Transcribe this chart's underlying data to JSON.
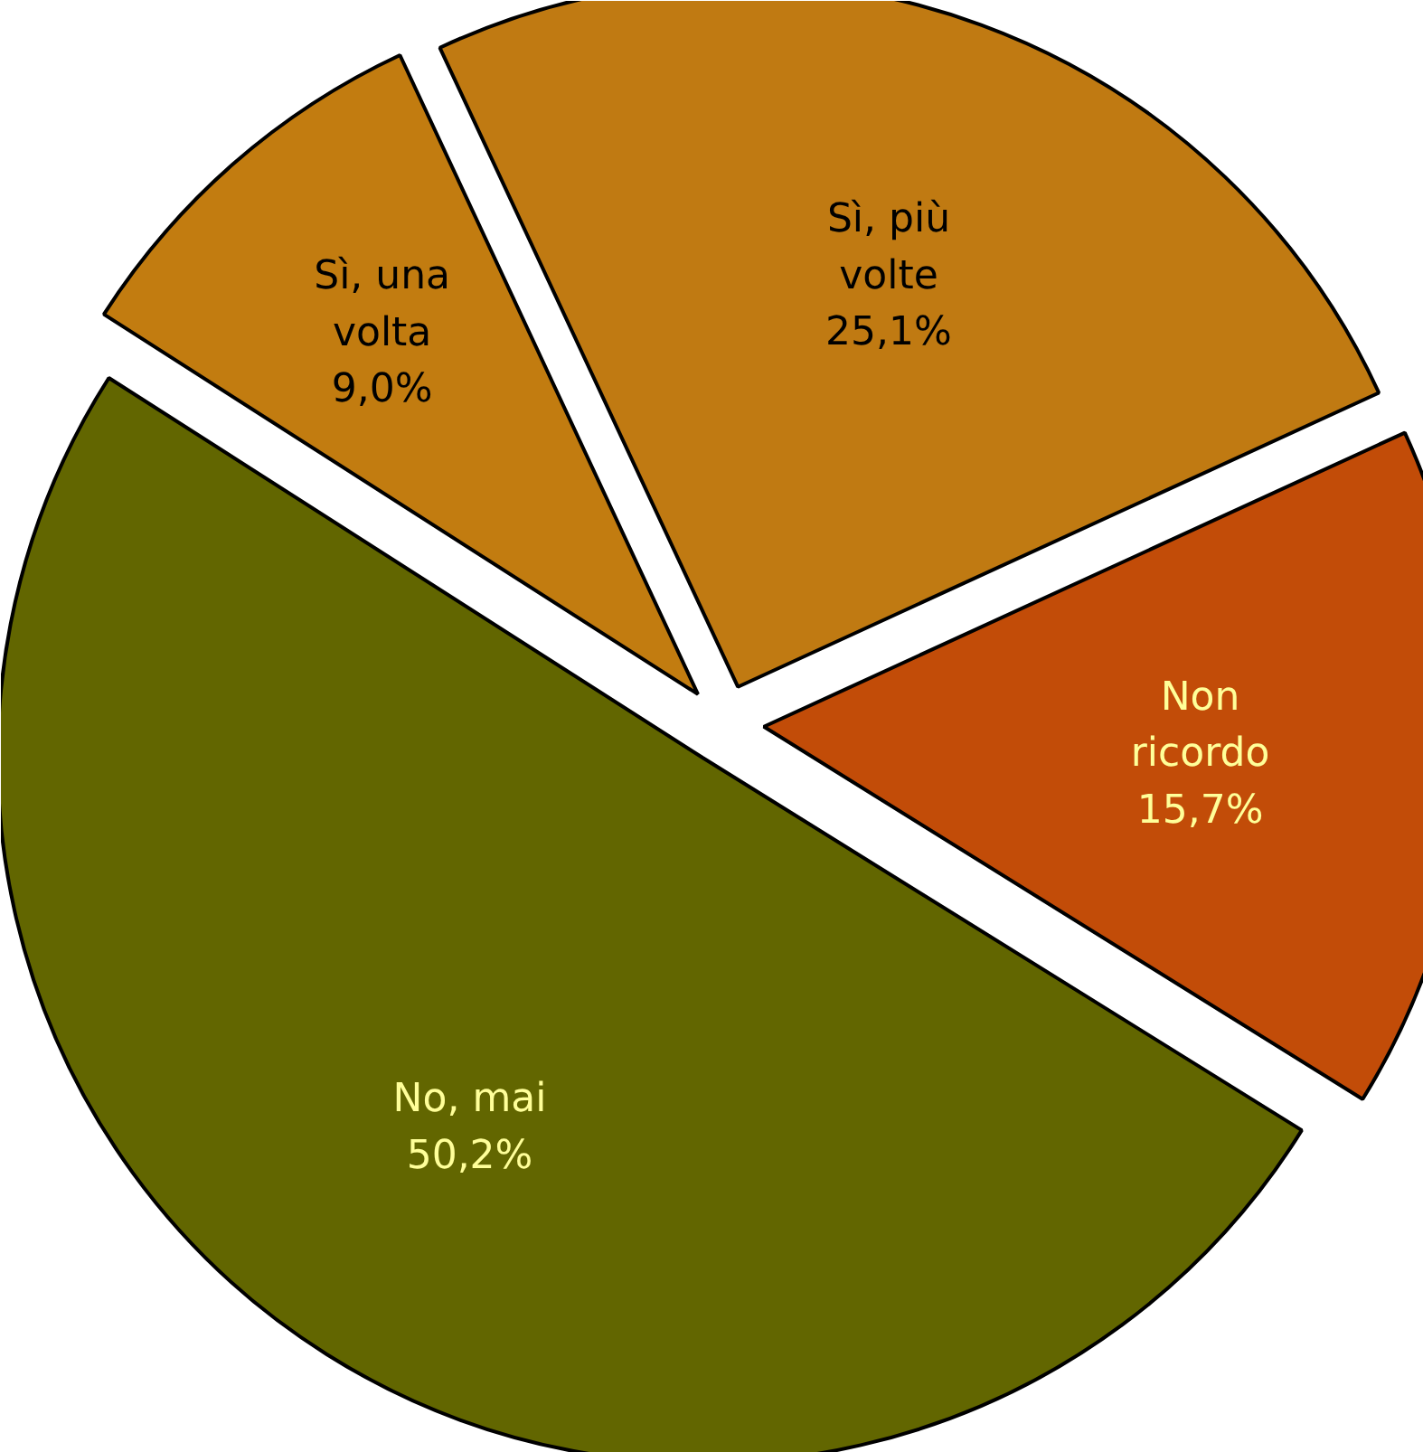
{
  "chart_data": {
    "type": "pie",
    "categories": [
      "Sì, più volte",
      "Non ricordo",
      "No, mai",
      "Sì, una volta"
    ],
    "values": [
      25.1,
      15.7,
      50.2,
      9.0
    ],
    "colors": [
      "#c07a12",
      "#c24c08",
      "#626600",
      "#c27c10"
    ],
    "value_labels": [
      "25,1%",
      "15,7%",
      "50,2%",
      "9,0%"
    ]
  }
}
